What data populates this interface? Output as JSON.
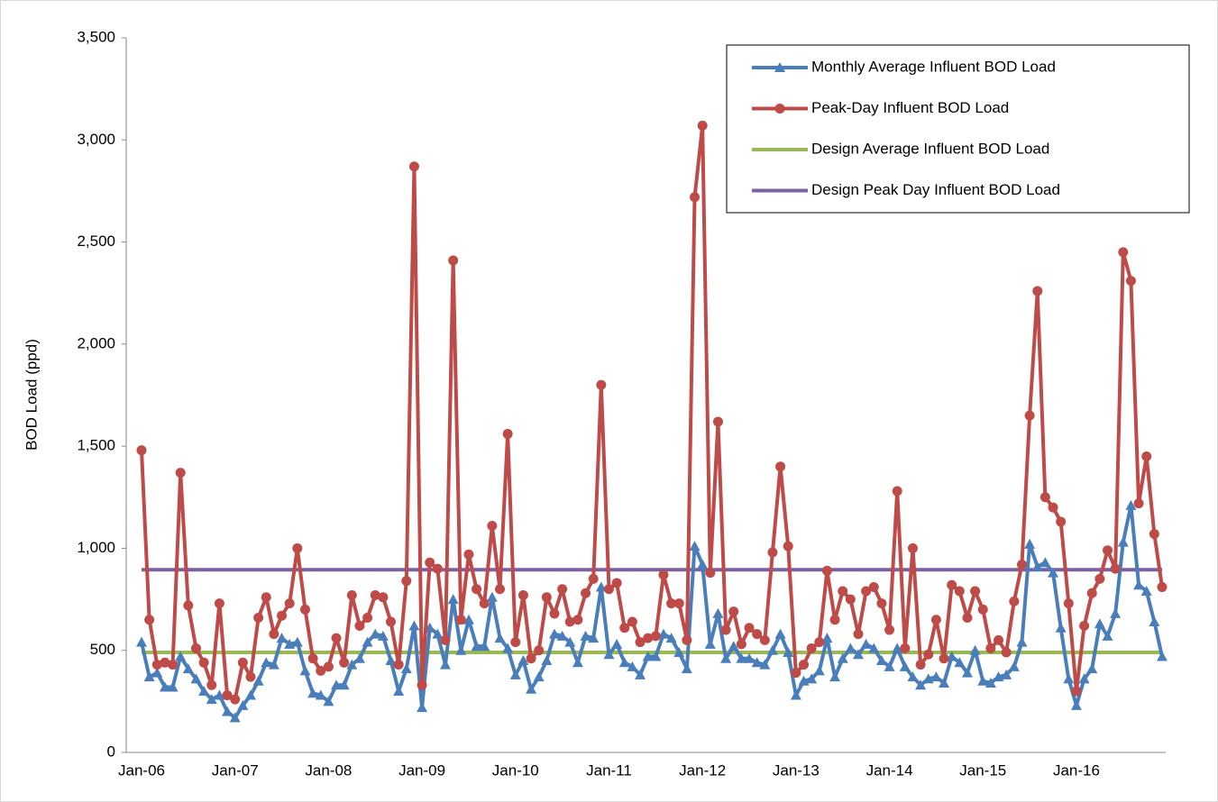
{
  "chart_data": {
    "type": "line",
    "y_label": "BOD Load (ppd)",
    "categories": [
      "Jan-06",
      null,
      null,
      null,
      null,
      null,
      null,
      null,
      null,
      null,
      null,
      null,
      "Jan-07",
      null,
      null,
      null,
      null,
      null,
      null,
      null,
      null,
      null,
      null,
      null,
      "Jan-08",
      null,
      null,
      null,
      null,
      null,
      null,
      null,
      null,
      null,
      null,
      null,
      "Jan-09",
      null,
      null,
      null,
      null,
      null,
      null,
      null,
      null,
      null,
      null,
      null,
      "Jan-10",
      null,
      null,
      null,
      null,
      null,
      null,
      null,
      null,
      null,
      null,
      null,
      "Jan-11",
      null,
      null,
      null,
      null,
      null,
      null,
      null,
      null,
      null,
      null,
      null,
      "Jan-12",
      null,
      null,
      null,
      null,
      null,
      null,
      null,
      null,
      null,
      null,
      null,
      "Jan-13",
      null,
      null,
      null,
      null,
      null,
      null,
      null,
      null,
      null,
      null,
      null,
      "Jan-14",
      null,
      null,
      null,
      null,
      null,
      null,
      null,
      null,
      null,
      null,
      null,
      "Jan-15",
      null,
      null,
      null,
      null,
      null,
      null,
      null,
      null,
      null,
      null,
      null,
      "Jan-16",
      null,
      null,
      null,
      null,
      null,
      null,
      null,
      null,
      null,
      null,
      null
    ],
    "series": [
      {
        "name": "Monthly Average Influent BOD Load",
        "color": "#4a7ebb",
        "marker": "triangle",
        "values": [
          540,
          370,
          390,
          320,
          320,
          470,
          410,
          360,
          300,
          260,
          280,
          200,
          170,
          230,
          280,
          350,
          440,
          430,
          560,
          530,
          540,
          400,
          290,
          280,
          250,
          330,
          330,
          430,
          460,
          540,
          580,
          570,
          450,
          300,
          410,
          620,
          220,
          610,
          580,
          430,
          750,
          500,
          650,
          520,
          520,
          760,
          560,
          510,
          380,
          450,
          310,
          370,
          450,
          580,
          570,
          540,
          440,
          570,
          560,
          810,
          480,
          530,
          440,
          420,
          380,
          470,
          470,
          580,
          560,
          490,
          410,
          1010,
          920,
          530,
          680,
          460,
          520,
          460,
          460,
          440,
          430,
          500,
          580,
          490,
          280,
          350,
          360,
          400,
          560,
          370,
          460,
          510,
          480,
          530,
          510,
          450,
          420,
          510,
          420,
          370,
          330,
          360,
          370,
          340,
          470,
          440,
          390,
          500,
          350,
          340,
          370,
          380,
          420,
          540,
          1020,
          910,
          930,
          880,
          610,
          360,
          230,
          360,
          410,
          630,
          570,
          680,
          1030,
          1210,
          820,
          790,
          640,
          470
        ]
      },
      {
        "name": "Peak-Day Influent BOD Load",
        "color": "#be4b48",
        "marker": "circle",
        "values": [
          1480,
          650,
          430,
          440,
          430,
          1370,
          720,
          510,
          440,
          330,
          730,
          280,
          260,
          440,
          370,
          660,
          760,
          580,
          670,
          730,
          1000,
          700,
          460,
          400,
          420,
          560,
          440,
          770,
          620,
          660,
          770,
          760,
          640,
          430,
          840,
          2870,
          330,
          930,
          900,
          550,
          2410,
          650,
          970,
          800,
          730,
          1110,
          800,
          1560,
          540,
          770,
          460,
          500,
          760,
          680,
          800,
          640,
          650,
          780,
          850,
          1800,
          800,
          830,
          610,
          640,
          540,
          560,
          570,
          870,
          730,
          730,
          550,
          2720,
          3070,
          880,
          1620,
          600,
          690,
          530,
          610,
          580,
          550,
          980,
          1400,
          1010,
          390,
          430,
          510,
          540,
          890,
          650,
          790,
          750,
          580,
          790,
          810,
          730,
          600,
          1280,
          510,
          1000,
          430,
          480,
          650,
          460,
          820,
          790,
          660,
          790,
          700,
          510,
          550,
          490,
          740,
          920,
          1650,
          2260,
          1250,
          1200,
          1130,
          730,
          300,
          620,
          780,
          850,
          990,
          900,
          2450,
          2310,
          1220,
          1450,
          1070,
          810
        ]
      },
      {
        "name": "Design Average Influent BOD Load",
        "color": "#98b954",
        "value": 490
      },
      {
        "name": "Design Peak Day Influent BOD Load",
        "color": "#7d60a0",
        "value": 895
      }
    ],
    "ylim": [
      0,
      3500
    ],
    "yticks": [
      0,
      {
        "value": 500,
        "label": "500"
      },
      {
        "value": 1000,
        "label": "1,000"
      },
      {
        "value": 1500,
        "label": "1,500"
      },
      {
        "value": 2000,
        "label": "2,000"
      },
      {
        "value": 2500,
        "label": "2,500"
      },
      {
        "value": 3000,
        "label": "3,000"
      },
      {
        "value": 3500,
        "label": "3,500"
      }
    ],
    "grid": false,
    "legend": "upper right"
  }
}
